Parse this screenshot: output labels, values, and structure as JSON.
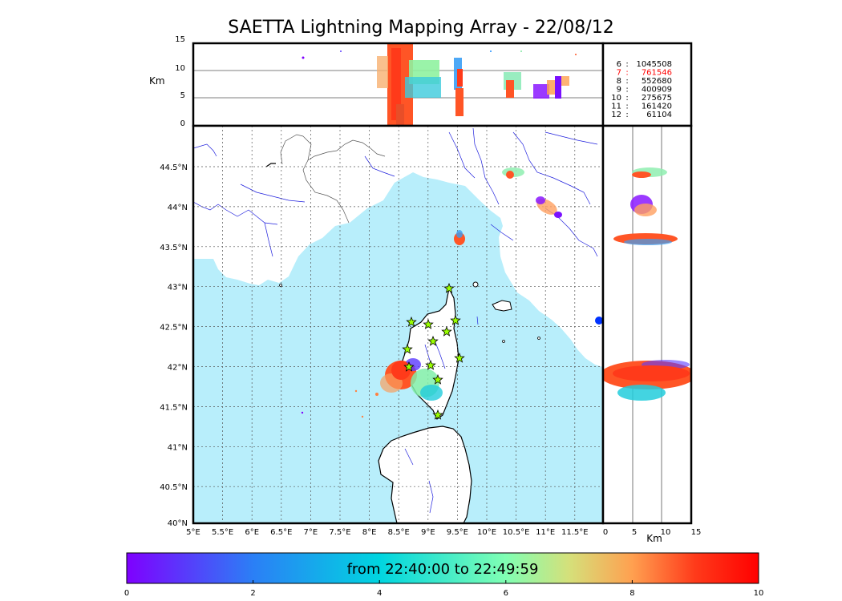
{
  "title": "SAETTA Lightning Mapping Array - 22/08/12",
  "alt_panel": {
    "ylabel": "Km",
    "yticks": [
      "15",
      "10",
      "5",
      "0"
    ]
  },
  "side_panel": {
    "xlabel": "Km",
    "xticks": [
      "0",
      "5",
      "10",
      "15"
    ]
  },
  "map": {
    "lon_ticks": [
      "5°E",
      "5.5°E",
      "6°E",
      "6.5°E",
      "7°E",
      "7.5°E",
      "8°E",
      "8.5°E",
      "9°E",
      "9.5°E",
      "10°E",
      "10.5°E",
      "11°E",
      "11.5°E"
    ],
    "lat_ticks": [
      "44.5°N",
      "44°N",
      "43.5°N",
      "43°N",
      "42.5°N",
      "42°N",
      "41.5°N",
      "41°N",
      "40.5°N",
      "40°N"
    ],
    "colors": {
      "sea": "#b8eefb",
      "land": "#ffffff",
      "rivers": "#2020dd",
      "borders": "#555555",
      "stations": "#99ff00"
    }
  },
  "legend": {
    "rows": [
      {
        "k": "6",
        "v": "1045508",
        "highlight": false
      },
      {
        "k": "7",
        "v": "761546",
        "highlight": true
      },
      {
        "k": "8",
        "v": "552680",
        "highlight": false
      },
      {
        "k": "9",
        "v": "400909",
        "highlight": false
      },
      {
        "k": "10",
        "v": "275675",
        "highlight": false
      },
      {
        "k": "11",
        "v": "161420",
        "highlight": false
      },
      {
        "k": "12",
        "v": "61104",
        "highlight": false
      }
    ],
    "highlight_color": "#ff0000"
  },
  "colorbar": {
    "label": "from 22:40:00 to 22:49:59",
    "ticks": [
      "0",
      "2",
      "4",
      "6",
      "8",
      "10"
    ],
    "colors": [
      "#7f00ff",
      "#2b7ff6",
      "#00d5e0",
      "#80ffb3",
      "#d5e07a",
      "#ffa050",
      "#ff3a1a",
      "#ff0000"
    ]
  }
}
